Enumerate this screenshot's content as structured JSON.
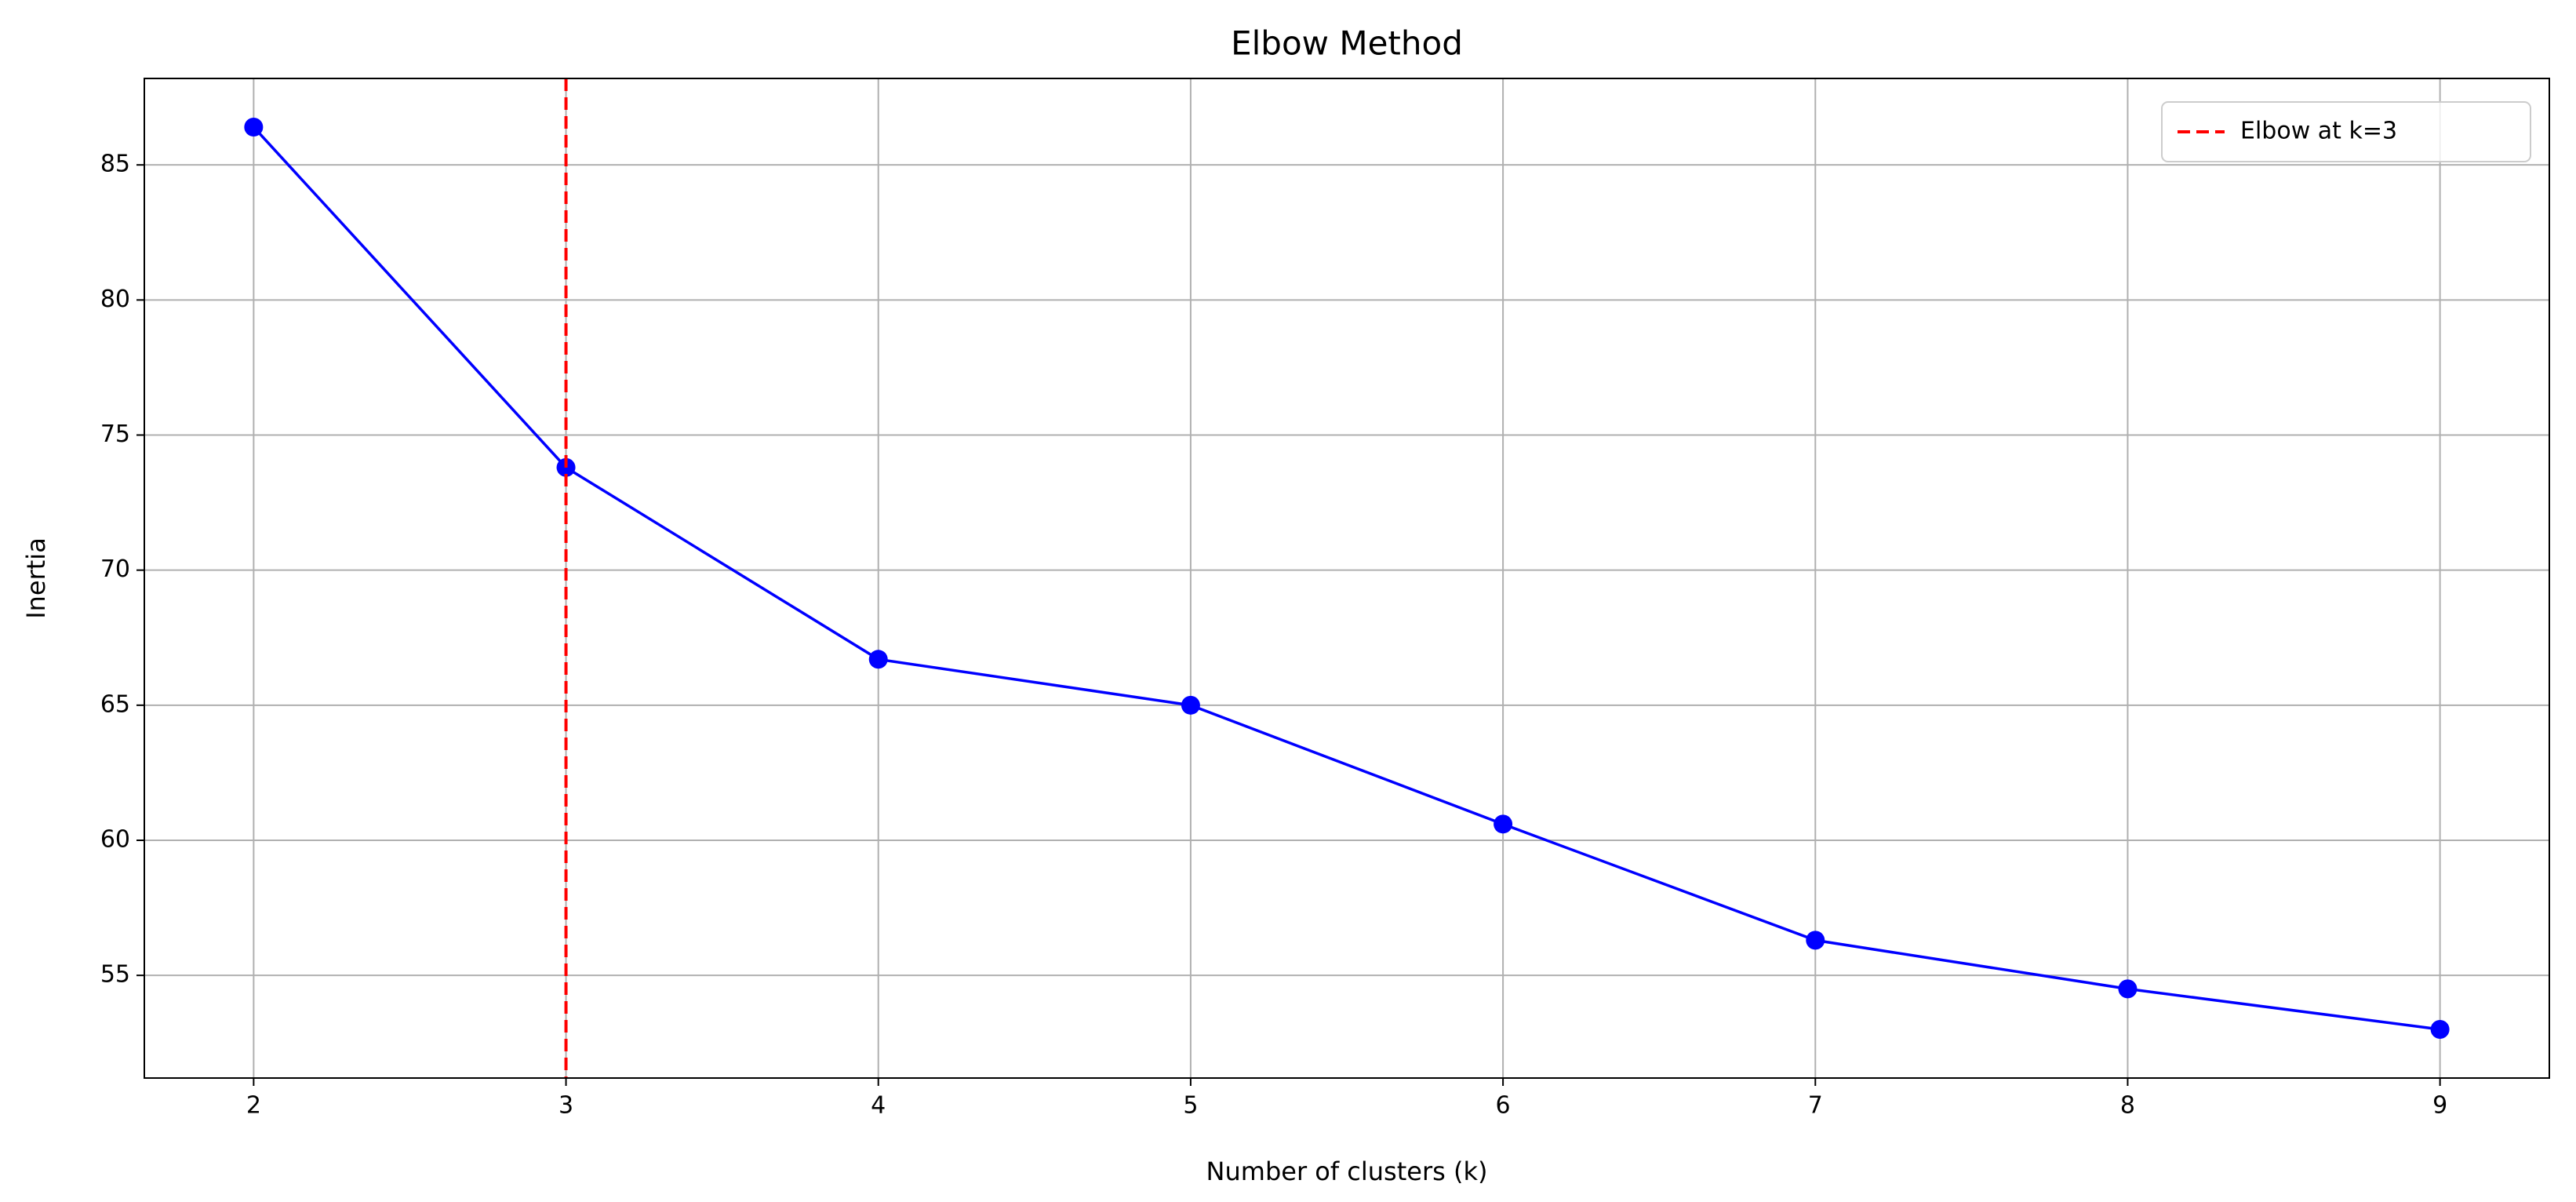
{
  "chart_data": {
    "type": "line",
    "title": "Elbow Method",
    "xlabel": "Number of clusters (k)",
    "ylabel": "Inertia",
    "x": [
      2,
      3,
      4,
      5,
      6,
      7,
      8,
      9
    ],
    "series": [
      {
        "name": null,
        "color": "blue",
        "marker": "o",
        "values": [
          86.4,
          73.8,
          66.7,
          65.0,
          60.6,
          56.3,
          54.5,
          53.0
        ]
      }
    ],
    "vline": {
      "x": 3,
      "name": "Elbow at k=3",
      "color": "red",
      "style": "dashed"
    },
    "xlim": [
      1.65,
      9.35
    ],
    "xticks": [
      2,
      3,
      4,
      5,
      6,
      7,
      8,
      9
    ],
    "ylim": [
      51.2,
      88.2
    ],
    "yticks": [
      55,
      60,
      65,
      70,
      75,
      80,
      85
    ],
    "grid": true,
    "legend": "upper right"
  }
}
